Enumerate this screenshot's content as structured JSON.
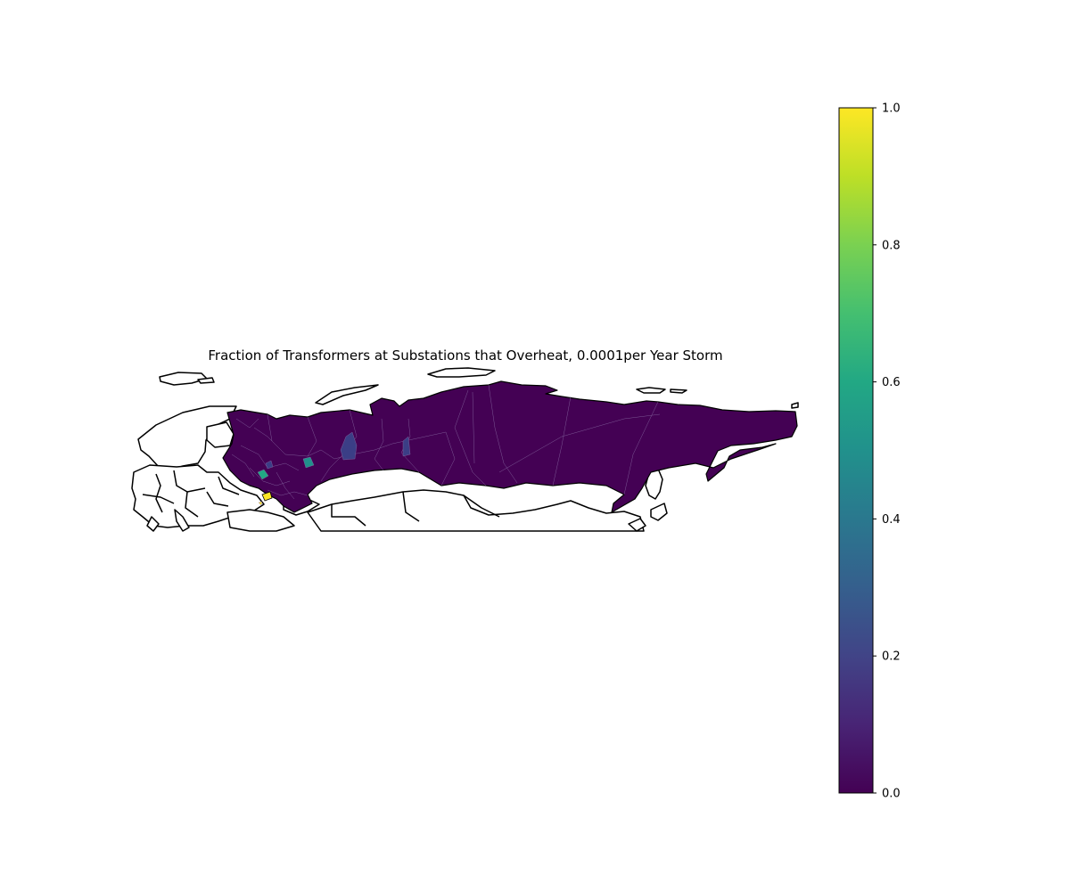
{
  "chart_data": {
    "type": "map",
    "title": "Fraction of Transformers at Substations that Overheat, 0.0001per Year Storm",
    "region": "Russia",
    "colormap": "viridis",
    "colorbar": {
      "vmin": 0.0,
      "vmax": 1.0,
      "ticks": [
        "0.0",
        "0.2",
        "0.4",
        "0.6",
        "0.8",
        "1.0"
      ]
    },
    "highlighted_regions": [
      {
        "area": "near Moscow (south-west)",
        "value": 0.55
      },
      {
        "area": "Volga region",
        "value": 0.5
      },
      {
        "area": "Ural region",
        "value": 0.15
      },
      {
        "area": "western Siberia",
        "value": 0.15
      },
      {
        "area": "near Moscow (small)",
        "value": 0.25
      },
      {
        "area": "southern Russia / Caucasus",
        "value": 1.0
      }
    ],
    "default_value": 0.0
  }
}
